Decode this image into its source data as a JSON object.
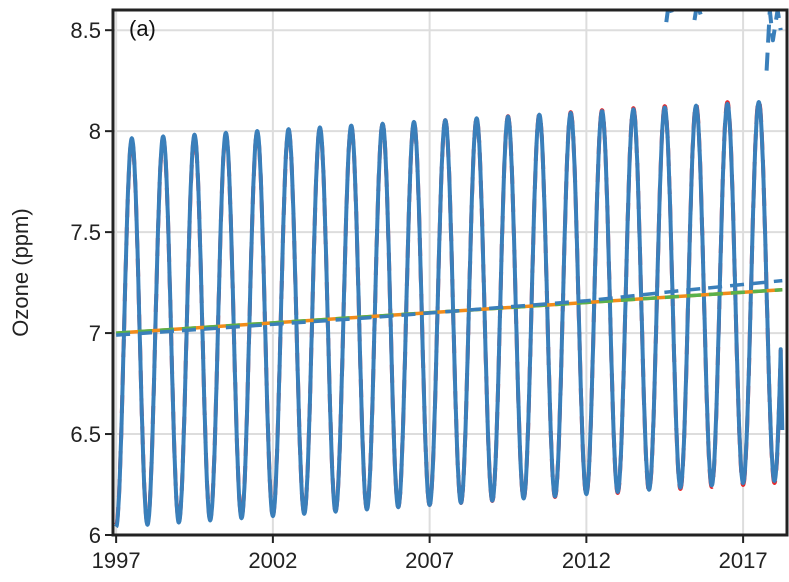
{
  "chart_data": {
    "type": "line",
    "title": "",
    "panel_label": "(a)",
    "xlabel": "",
    "ylabel": "Ozone (ppm)",
    "xlim": [
      1996.9,
      2018.4
    ],
    "ylim": [
      6.0,
      8.6
    ],
    "x_ticks": [
      1997,
      2002,
      2007,
      2012,
      2017
    ],
    "x_tick_labels": [
      "1997",
      "2002",
      "2007",
      "2012",
      "2017"
    ],
    "y_ticks": [
      6.0,
      6.5,
      7.0,
      7.5,
      8.0,
      8.5
    ],
    "y_tick_labels": [
      "6",
      "6.5",
      "7",
      "7.5",
      "8",
      "8.5"
    ],
    "grid": true,
    "colors": {
      "seasonal_red": "#e8282b",
      "seasonal_blue": "#3a7fba",
      "trend_orange": "#f28c1a",
      "trend_green": "#59b14b",
      "trend_blue": "#3a7fba",
      "grid": "#dddddd",
      "axes": "#222222"
    },
    "series": [
      {
        "style": "dashed",
        "color": "#e8282b",
        "role": "seasonal",
        "start": 1997.0,
        "end": 2018.2,
        "period_years": 1.0,
        "trend_start": 7.0,
        "trend_end": 7.21,
        "amp_start": 0.95,
        "amp_end": 0.95
      },
      {
        "style": "solid",
        "color": "#3a7fba",
        "role": "seasonal",
        "start": 1997.0,
        "end": 2018.2,
        "period_years": 1.0,
        "trend_start": 7.0,
        "trend_end": 7.21,
        "amp_start": 0.96,
        "amp_end": 0.94,
        "last_point": [
          2018.25,
          6.52
        ]
      },
      {
        "style": "dashed",
        "color": "#3a7fba",
        "role": "seasonal-divergent",
        "segments": [
          {
            "x": [
              2014.55,
              2014.6,
              2014.7,
              2014.8
            ],
            "y": [
              8.54,
              8.6,
              8.6,
              8.55
            ]
          },
          {
            "x": [
              2015.45,
              2015.5,
              2015.6,
              2015.7
            ],
            "y": [
              8.55,
              8.6,
              8.6,
              8.55
            ]
          },
          {
            "x": [
              2017.75,
              2017.85,
              2017.95,
              2018.1,
              2018.2
            ],
            "y": [
              8.3,
              8.6,
              8.45,
              8.6,
              8.5
            ]
          }
        ]
      },
      {
        "style": "solid",
        "color": "#f28c1a",
        "role": "trend",
        "x": [
          1997.0,
          2018.25
        ],
        "y": [
          7.0,
          7.215
        ]
      },
      {
        "style": "dashed",
        "color": "#59b14b",
        "role": "trend",
        "x": [
          1997.0,
          2018.25
        ],
        "y": [
          7.0,
          7.215
        ]
      },
      {
        "style": "dashed",
        "color": "#3a7fba",
        "role": "trend",
        "x": [
          1997.0,
          2005.0,
          2012.0,
          2015.0,
          2018.25
        ],
        "y": [
          6.99,
          7.075,
          7.16,
          7.21,
          7.26
        ]
      }
    ]
  }
}
